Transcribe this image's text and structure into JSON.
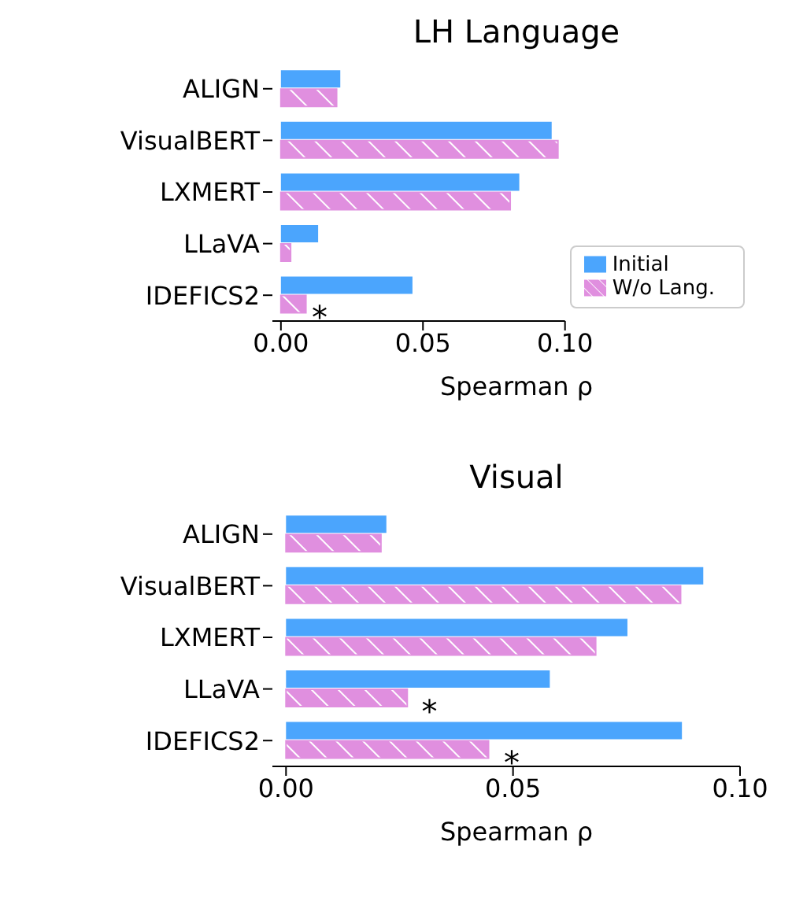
{
  "chart_data": [
    {
      "type": "bar",
      "orientation": "horizontal",
      "title": "LH Language",
      "xlabel": "Spearman ρ",
      "categories": [
        "ALIGN",
        "VisualBERT",
        "LXMERT",
        "LLaVA",
        "IDEFICS2"
      ],
      "series": [
        {
          "name": "Initial",
          "color": "#4ba5fd",
          "values": [
            0.0209,
            0.0953,
            0.0839,
            0.0131,
            0.0463
          ]
        },
        {
          "name": "W/o Lang.",
          "color": "#e08fdf",
          "values": [
            0.0196,
            0.0975,
            0.0807,
            0.0034,
            0.0088
          ]
        }
      ],
      "xlim": [
        -0.003,
        0.1
      ],
      "xticks": [
        {
          "value": 0,
          "label": "0.00"
        },
        {
          "value": 0.05,
          "label": "0.05"
        },
        {
          "value": 0.1,
          "label": "0.10"
        }
      ],
      "legend": "bottom right",
      "grid": false,
      "annotations": [
        {
          "text": "*",
          "x": 0.0136,
          "y": "IDEFICS2"
        }
      ]
    },
    {
      "type": "bar",
      "orientation": "horizontal",
      "title": "Visual",
      "xlabel": "Spearman ρ",
      "categories": [
        "ALIGN",
        "VisualBERT",
        "LXMERT",
        "LLaVA",
        "IDEFICS2"
      ],
      "series": [
        {
          "color": "#4ba5fd",
          "values": [
            0.0221,
            0.0919,
            0.0752,
            0.0581,
            0.0872
          ]
        },
        {
          "color": "#e08fdf",
          "values": [
            0.0209,
            0.0869,
            0.0682,
            0.0267,
            0.0446
          ]
        }
      ],
      "xlim": [
        -0.003,
        0.1
      ],
      "xticks": [
        {
          "value": 0,
          "label": "0.00"
        },
        {
          "value": 0.05,
          "label": "0.05"
        },
        {
          "value": 0.1,
          "label": "0.10"
        }
      ],
      "legend": false,
      "grid": false,
      "annotations": [
        {
          "text": "*",
          "x": 0.0316,
          "y": "LLaVA"
        },
        {
          "text": "*",
          "x": 0.0497,
          "y": "IDEFICS2"
        }
      ]
    }
  ]
}
